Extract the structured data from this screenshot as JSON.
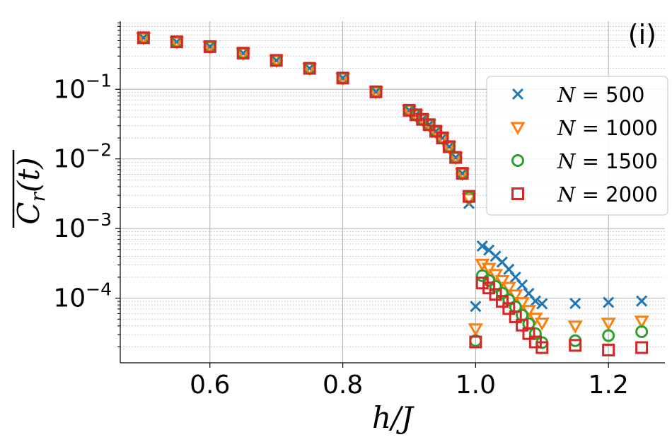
{
  "chart_data": {
    "type": "scatter",
    "panel_label": "(i)",
    "xlabel": "h/J",
    "ylabel": "C_r(t) (overlined)",
    "ylabel_parts": {
      "base": "C",
      "sub": "r",
      "arg": "(t)"
    },
    "xlim": [
      0.465,
      1.285
    ],
    "ylim": [
      1.18e-05,
      0.95
    ],
    "yscale": "log",
    "grid": true,
    "legend_position": "upper-right",
    "x_ticks": [
      {
        "value": 0.6,
        "label": "0.6"
      },
      {
        "value": 0.8,
        "label": "0.8"
      },
      {
        "value": 1.0,
        "label": "1.0"
      },
      {
        "value": 1.2,
        "label": "1.2"
      }
    ],
    "y_ticks": [
      {
        "value": 0.1,
        "base": "10",
        "exp": "−1"
      },
      {
        "value": 0.01,
        "base": "10",
        "exp": "−2"
      },
      {
        "value": 0.001,
        "base": "10",
        "exp": "−3"
      },
      {
        "value": 0.0001,
        "base": "10",
        "exp": "−4"
      }
    ],
    "series": [
      {
        "name": "N = 500",
        "legend_var": "N",
        "legend_value": "500",
        "marker": "x",
        "color": "#1f77b4",
        "x": [
          0.5,
          0.55,
          0.6,
          0.65,
          0.7,
          0.75,
          0.8,
          0.85,
          0.9,
          0.91,
          0.92,
          0.93,
          0.94,
          0.95,
          0.96,
          0.97,
          0.98,
          0.99,
          1.0,
          1.01,
          1.02,
          1.03,
          1.04,
          1.05,
          1.06,
          1.07,
          1.08,
          1.09,
          1.1,
          1.15,
          1.2,
          1.25
        ],
        "y": [
          0.55,
          0.48,
          0.41,
          0.33,
          0.26,
          0.2,
          0.145,
          0.092,
          0.05,
          0.043,
          0.037,
          0.031,
          0.025,
          0.02,
          0.015,
          0.0105,
          0.0062,
          0.0023,
          7.6e-05,
          0.00056,
          0.00049,
          0.0004,
          0.00033,
          0.00026,
          0.0002,
          0.000155,
          0.000117,
          9.1e-05,
          8.3e-05,
          8.4e-05,
          8.7e-05,
          9.1e-05
        ]
      },
      {
        "name": "N = 1000",
        "legend_var": "N",
        "legend_value": "1000",
        "marker": "triangle_down",
        "color": "#ff7f0e",
        "x": [
          0.5,
          0.55,
          0.6,
          0.65,
          0.7,
          0.75,
          0.8,
          0.85,
          0.9,
          0.91,
          0.92,
          0.93,
          0.94,
          0.95,
          0.96,
          0.97,
          0.98,
          0.99,
          1.0,
          1.01,
          1.02,
          1.03,
          1.04,
          1.05,
          1.06,
          1.07,
          1.08,
          1.09,
          1.1,
          1.15,
          1.2,
          1.25
        ],
        "y": [
          0.55,
          0.48,
          0.41,
          0.33,
          0.26,
          0.2,
          0.145,
          0.092,
          0.05,
          0.043,
          0.037,
          0.031,
          0.025,
          0.02,
          0.015,
          0.0105,
          0.0062,
          0.0027,
          3.65e-05,
          0.00031,
          0.00027,
          0.00022,
          0.00018,
          0.000144,
          0.000112,
          8.7e-05,
          6.7e-05,
          5.2e-05,
          4.4e-05,
          4e-05,
          4.4e-05,
          4.7e-05
        ]
      },
      {
        "name": "N = 1500",
        "legend_var": "N",
        "legend_value": "1500",
        "marker": "circle",
        "color": "#2ca02c",
        "x": [
          0.5,
          0.55,
          0.6,
          0.65,
          0.7,
          0.75,
          0.8,
          0.85,
          0.9,
          0.91,
          0.92,
          0.93,
          0.94,
          0.95,
          0.96,
          0.97,
          0.98,
          0.99,
          1.0,
          1.01,
          1.02,
          1.03,
          1.04,
          1.05,
          1.06,
          1.07,
          1.08,
          1.09,
          1.1,
          1.15,
          1.2,
          1.25
        ],
        "y": [
          0.55,
          0.48,
          0.41,
          0.33,
          0.26,
          0.2,
          0.145,
          0.092,
          0.05,
          0.043,
          0.037,
          0.031,
          0.025,
          0.02,
          0.015,
          0.0105,
          0.0062,
          0.0028,
          2.45e-05,
          0.00021,
          0.00018,
          0.000148,
          0.000118,
          9.5e-05,
          7.5e-05,
          5.7e-05,
          4.3e-05,
          3.1e-05,
          2.3e-05,
          2.45e-05,
          2.9e-05,
          3.3e-05
        ]
      },
      {
        "name": "N = 2000",
        "legend_var": "N",
        "legend_value": "2000",
        "marker": "square",
        "color": "#d62728",
        "x": [
          0.5,
          0.55,
          0.6,
          0.65,
          0.7,
          0.75,
          0.8,
          0.85,
          0.9,
          0.91,
          0.92,
          0.93,
          0.94,
          0.95,
          0.96,
          0.97,
          0.98,
          0.99,
          1.0,
          1.01,
          1.02,
          1.03,
          1.04,
          1.05,
          1.06,
          1.07,
          1.08,
          1.09,
          1.1,
          1.15,
          1.2,
          1.25
        ],
        "y": [
          0.55,
          0.48,
          0.41,
          0.33,
          0.26,
          0.2,
          0.145,
          0.092,
          0.05,
          0.043,
          0.037,
          0.031,
          0.025,
          0.02,
          0.015,
          0.0105,
          0.0062,
          0.0029,
          2.35e-05,
          0.000165,
          0.00014,
          0.000113,
          9e-05,
          7.1e-05,
          5.4e-05,
          4.1e-05,
          3.1e-05,
          2.35e-05,
          1.95e-05,
          2.1e-05,
          1.8e-05,
          1.95e-05
        ]
      }
    ]
  }
}
